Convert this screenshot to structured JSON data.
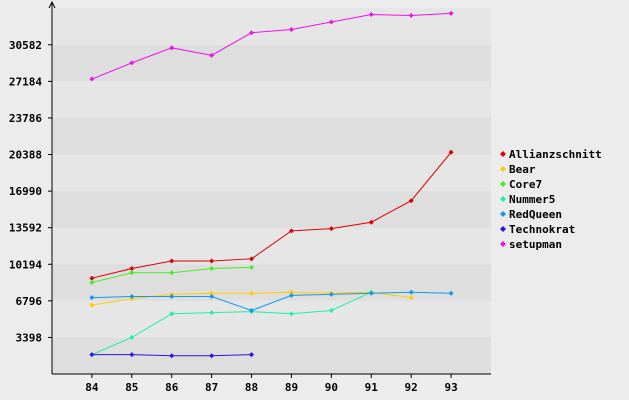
{
  "chart_data": {
    "type": "line",
    "x": [
      84,
      85,
      86,
      87,
      88,
      89,
      90,
      91,
      92,
      93
    ],
    "y_ticks": [
      "3398",
      "6796",
      "10194",
      "13592",
      "16990",
      "20388",
      "23786",
      "27184",
      "30582"
    ],
    "x_ticks": [
      "84",
      "85",
      "86",
      "87",
      "88",
      "89",
      "90",
      "91",
      "92",
      "93"
    ],
    "ylim": [
      0,
      34000
    ],
    "xlim": [
      83,
      94
    ],
    "grid": "horizontal bands",
    "legend_position": "right",
    "title": "",
    "xlabel": "",
    "ylabel": "",
    "series": [
      {
        "name": "Allianzschnitt",
        "color": "#dd0000",
        "x": [
          84,
          85,
          86,
          87,
          88,
          89,
          90,
          91,
          92,
          93
        ],
        "values": [
          8900,
          9800,
          10500,
          10500,
          10700,
          13300,
          13500,
          14100,
          16100,
          20600
        ]
      },
      {
        "name": "Bear",
        "color": "#ffcc00",
        "x": [
          84,
          85,
          86,
          87,
          88,
          89,
          90,
          91,
          92
        ],
        "values": [
          6400,
          7000,
          7400,
          7500,
          7500,
          7600,
          7500,
          7600,
          7100
        ]
      },
      {
        "name": "Core7",
        "color": "#44ee22",
        "x": [
          84,
          85,
          86,
          87,
          88
        ],
        "values": [
          8500,
          9400,
          9400,
          9800,
          9900
        ]
      },
      {
        "name": "Nummer5",
        "color": "#22eeaa",
        "x": [
          84,
          85,
          86,
          87,
          88,
          89,
          90,
          91
        ],
        "values": [
          1800,
          3400,
          5600,
          5700,
          5800,
          5600,
          5900,
          7600
        ]
      },
      {
        "name": "RedQueen",
        "color": "#1199ee",
        "x": [
          84,
          85,
          86,
          87,
          88,
          89,
          90,
          91,
          92,
          93
        ],
        "values": [
          7100,
          7200,
          7200,
          7200,
          5900,
          7300,
          7400,
          7500,
          7600,
          7500
        ]
      },
      {
        "name": "Technokrat",
        "color": "#3311dd",
        "x": [
          84,
          85,
          86,
          87,
          88
        ],
        "values": [
          1800,
          1800,
          1700,
          1700,
          1800
        ]
      },
      {
        "name": "setupman",
        "color": "#ee11ee",
        "x": [
          84,
          85,
          86,
          87,
          88,
          89,
          90,
          91,
          92,
          93
        ],
        "values": [
          27400,
          28900,
          30300,
          29600,
          31700,
          32000,
          32700,
          33400,
          33300,
          33500
        ]
      }
    ]
  }
}
